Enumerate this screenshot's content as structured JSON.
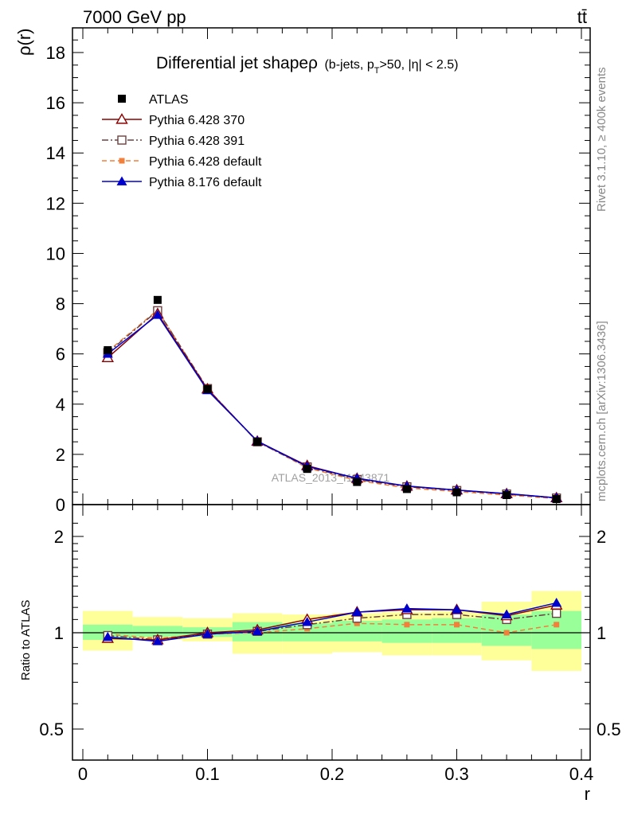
{
  "header": {
    "energy_label": "7000 GeV pp",
    "process_label": "tt̄"
  },
  "side_labels": {
    "rivet": "Rivet 3.1.10, ≥ 400k events",
    "mcplots": "mcplots.cern.ch [arXiv:1306.3436]"
  },
  "watermark": "ATLAS_2013_I1243871",
  "chart_data": [
    {
      "type": "line",
      "title": "Differential jet shapeρ",
      "subtitle": "(b-jets, p_T>50, |η| < 2.5)",
      "subtitle_parts": {
        "open": "(b-jets, p",
        "sub": "T",
        "rest": ">50, |η| < 2.5)"
      },
      "ylabel": "ρ(r)",
      "xlabel": "r",
      "xlim": [
        0,
        0.4
      ],
      "ylim": [
        0,
        19
      ],
      "yticks": [
        {
          "v": 0,
          "label": "0"
        },
        {
          "v": 2,
          "label": "2"
        },
        {
          "v": 4,
          "label": "4"
        },
        {
          "v": 6,
          "label": "6"
        },
        {
          "v": 8,
          "label": "8"
        },
        {
          "v": 10,
          "label": "10"
        },
        {
          "v": 12,
          "label": "12"
        },
        {
          "v": 14,
          "label": "14"
        },
        {
          "v": 16,
          "label": "16"
        },
        {
          "v": 18,
          "label": "18"
        }
      ],
      "x": [
        0.02,
        0.06,
        0.1,
        0.14,
        0.18,
        0.22,
        0.26,
        0.3,
        0.34,
        0.38
      ],
      "series": [
        {
          "name": "ATLAS",
          "marker": "square-filled",
          "color": "#000000",
          "line": "none",
          "values": [
            6.15,
            8.15,
            4.6,
            2.5,
            1.42,
            0.9,
            0.62,
            0.49,
            0.38,
            0.22
          ]
        },
        {
          "name": "Pythia 6.428 370",
          "marker": "triangle-open",
          "color": "#8b0000",
          "line": "solid",
          "values": [
            5.85,
            7.6,
            4.6,
            2.52,
            1.55,
            1.04,
            0.73,
            0.58,
            0.43,
            0.27
          ]
        },
        {
          "name": "Pythia 6.428 391",
          "marker": "square-open",
          "color": "#6b4040",
          "line": "dashdot",
          "values": [
            6.05,
            7.72,
            4.62,
            2.5,
            1.5,
            1.0,
            0.71,
            0.56,
            0.42,
            0.26
          ]
        },
        {
          "name": "Pythia 6.428 default",
          "marker": "square-small",
          "color": "#f0803c",
          "line": "dashed",
          "values": [
            6.1,
            7.75,
            4.58,
            2.52,
            1.46,
            0.96,
            0.66,
            0.52,
            0.38,
            0.24
          ]
        },
        {
          "name": "Pythia 8.176 default",
          "marker": "triangle-filled",
          "color": "#0000cc",
          "line": "solid",
          "values": [
            6.0,
            7.55,
            4.55,
            2.53,
            1.52,
            1.05,
            0.74,
            0.58,
            0.44,
            0.27
          ]
        }
      ]
    },
    {
      "type": "line",
      "ylabel": "Ratio to ATLAS",
      "xlabel": "r",
      "xlim": [
        0,
        0.4
      ],
      "ylim": [
        0.4,
        2.4
      ],
      "y_scale": "log",
      "yticks": [
        {
          "v": 0.5,
          "label": "0.5"
        },
        {
          "v": 1,
          "label": "1"
        },
        {
          "v": 2,
          "label": "2"
        }
      ],
      "xticks": [
        {
          "v": 0,
          "label": "0"
        },
        {
          "v": 0.1,
          "label": "0.1"
        },
        {
          "v": 0.2,
          "label": "0.2"
        },
        {
          "v": 0.3,
          "label": "0.3"
        },
        {
          "v": 0.4,
          "label": "0.4"
        }
      ],
      "bands": {
        "bin_edges": [
          0.0,
          0.04,
          0.08,
          0.12,
          0.16,
          0.2,
          0.24,
          0.28,
          0.32,
          0.36,
          0.4
        ],
        "yellow_low": [
          0.88,
          0.95,
          0.94,
          0.86,
          0.86,
          0.87,
          0.85,
          0.85,
          0.82,
          0.76
        ],
        "yellow_high": [
          1.17,
          1.12,
          1.11,
          1.15,
          1.14,
          1.15,
          1.16,
          1.17,
          1.25,
          1.35
        ],
        "green_low": [
          0.95,
          0.97,
          0.97,
          0.94,
          0.94,
          0.94,
          0.93,
          0.93,
          0.91,
          0.89
        ],
        "green_high": [
          1.06,
          1.05,
          1.04,
          1.08,
          1.07,
          1.09,
          1.1,
          1.11,
          1.14,
          1.17
        ],
        "yellow_color": "#ffff99",
        "green_color": "#99ff99"
      },
      "x": [
        0.02,
        0.06,
        0.1,
        0.14,
        0.18,
        0.22,
        0.26,
        0.3,
        0.34,
        0.38
      ],
      "series": [
        {
          "name": "Pythia 6.428 370",
          "marker": "triangle-open",
          "color": "#8b0000",
          "line": "solid",
          "values": [
            0.96,
            0.95,
            1.0,
            1.02,
            1.1,
            1.16,
            1.18,
            1.18,
            1.13,
            1.22
          ]
        },
        {
          "name": "Pythia 6.428 391",
          "marker": "square-open",
          "color": "#6b4040",
          "line": "dashdot",
          "values": [
            0.98,
            0.95,
            0.99,
            1.01,
            1.06,
            1.11,
            1.14,
            1.14,
            1.1,
            1.15
          ]
        },
        {
          "name": "Pythia 6.428 default",
          "marker": "square-small",
          "color": "#f0803c",
          "line": "dashed",
          "values": [
            0.99,
            0.96,
            0.99,
            1.0,
            1.03,
            1.07,
            1.06,
            1.06,
            1.0,
            1.06
          ]
        },
        {
          "name": "Pythia 8.176 default",
          "marker": "triangle-filled",
          "color": "#0000cc",
          "line": "solid",
          "values": [
            0.97,
            0.94,
            0.99,
            1.01,
            1.08,
            1.16,
            1.19,
            1.18,
            1.14,
            1.24
          ]
        }
      ]
    }
  ]
}
